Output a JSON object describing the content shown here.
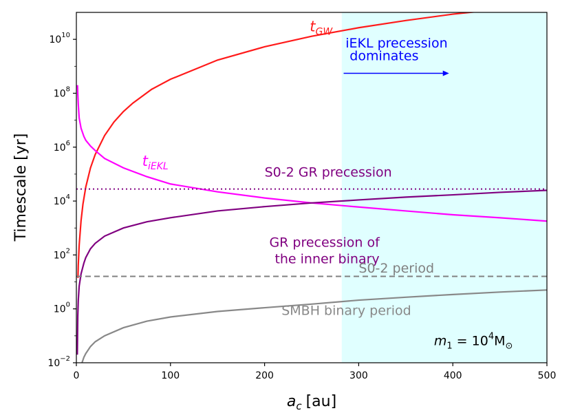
{
  "chart_data": {
    "type": "line",
    "xlabel_base": "a",
    "xlabel_sub": "c",
    "xlabel_unit": "[au]",
    "ylabel": "Timescale [yr]",
    "y_scale": "log",
    "xlim": [
      0,
      500
    ],
    "ylim": [
      0.01,
      100000000000
    ],
    "grid": false,
    "x_ticks": [
      {
        "value": 0,
        "label": "0"
      },
      {
        "value": 100,
        "label": "100"
      },
      {
        "value": 200,
        "label": "200"
      },
      {
        "value": 300,
        "label": "300"
      },
      {
        "value": 400,
        "label": "400"
      },
      {
        "value": 500,
        "label": "500"
      }
    ],
    "y_ticks": [
      {
        "value": 0.01,
        "base": "10",
        "exp": "−2"
      },
      {
        "value": 1,
        "base": "10",
        "exp": "0"
      },
      {
        "value": 100,
        "base": "10",
        "exp": "2"
      },
      {
        "value": 10000,
        "base": "10",
        "exp": "4"
      },
      {
        "value": 1000000,
        "base": "10",
        "exp": "6"
      },
      {
        "value": 100000000,
        "base": "10",
        "exp": "8"
      },
      {
        "value": 10000000000,
        "base": "10",
        "exp": "10"
      }
    ],
    "shaded_region": {
      "x_from": 282,
      "x_to": 500,
      "color": "#e0ffff"
    },
    "series": [
      {
        "label_main": "t",
        "label_sub": "GW",
        "label_x": 248,
        "label_y": 20000000000,
        "color": "#ff1a1a",
        "style": "solid",
        "x": [
          1.7,
          2,
          3,
          5,
          7,
          10,
          15,
          20,
          30,
          40,
          50,
          60,
          80,
          100,
          150,
          200,
          250,
          300,
          350,
          400,
          450,
          470
        ],
        "y": [
          14,
          40,
          230,
          1900,
          7700,
          33000,
          170000,
          530000,
          2700000,
          8600000,
          21000000,
          43000000,
          140000000,
          330000000,
          1700000000,
          5300000000,
          13000000000,
          27000000000,
          50000000000,
          86000000000,
          130000000000,
          160000000000
        ]
      },
      {
        "label_main": "t",
        "label_sub": "iEKL",
        "label_x": 70,
        "label_y": 200000,
        "color": "#ff00ff",
        "style": "solid",
        "x": [
          1.2,
          1.5,
          2,
          3,
          5,
          8,
          10,
          15,
          20,
          30,
          50,
          75,
          100,
          150,
          200,
          250,
          300,
          350,
          400,
          450,
          500
        ],
        "y": [
          200000000,
          100000000,
          40000000,
          12000000,
          5000000,
          2500000,
          1800000,
          1100000,
          750000,
          380000,
          170000,
          80000,
          43000,
          22000,
          13000,
          8500,
          6000,
          4300,
          3100,
          2400,
          1800
        ]
      },
      {
        "label_main": "GR  precession of",
        "label_line2": "the inner binary",
        "label_x": 205,
        "label_y": 200,
        "color": "#800080",
        "style": "solid",
        "x": [
          1,
          1.5,
          2,
          3,
          5,
          8,
          10,
          15,
          20,
          30,
          50,
          75,
          100,
          150,
          200,
          250,
          300,
          350,
          400,
          450,
          500
        ],
        "y": [
          0.02,
          0.5,
          2,
          7,
          20,
          50,
          80,
          170,
          270,
          500,
          1000,
          1700,
          2400,
          4300,
          6200,
          8500,
          11000,
          14000,
          17000,
          21000,
          25000
        ]
      },
      {
        "label_main": "SMBH binary period",
        "label_x": 218,
        "label_y": 0.6,
        "color": "#888888",
        "style": "solid",
        "x": [
          6,
          8,
          10,
          15,
          20,
          30,
          50,
          75,
          100,
          150,
          200,
          250,
          300,
          350,
          400,
          450,
          500
        ],
        "y": [
          0.01,
          0.016,
          0.022,
          0.04,
          0.06,
          0.1,
          0.2,
          0.35,
          0.5,
          0.8,
          1.1,
          1.5,
          2.1,
          2.7,
          3.4,
          4.2,
          5.0
        ]
      },
      {
        "label_main": "S0-2 GR precession",
        "label_x": 200,
        "label_y": 80000,
        "color": "#800080",
        "style": "dotted",
        "x": [
          0,
          500
        ],
        "y": [
          28000,
          28000
        ]
      },
      {
        "label_main": "S0-2 period",
        "label_x": 300,
        "label_y": 22,
        "color": "#808080",
        "style": "dashed",
        "x": [
          0,
          500
        ],
        "y": [
          16,
          16
        ]
      }
    ],
    "annotations": [
      {
        "text": "iEKL precession",
        "x": 286,
        "y": 5000000000,
        "color": "#0000ff"
      },
      {
        "text": " dominates",
        "x": 286,
        "y": 1700000000,
        "color": "#0000ff"
      },
      {
        "type": "arrow",
        "x_from": 284,
        "x_to": 396,
        "y": 550000000,
        "color": "#0000ff"
      }
    ],
    "mass_label": {
      "lhs": "m",
      "lhs_sub": "1",
      "eq": " = 10",
      "exp": "4",
      "unit": "M",
      "unit_sub": "⊙",
      "x": 380,
      "y": 0.045
    }
  }
}
